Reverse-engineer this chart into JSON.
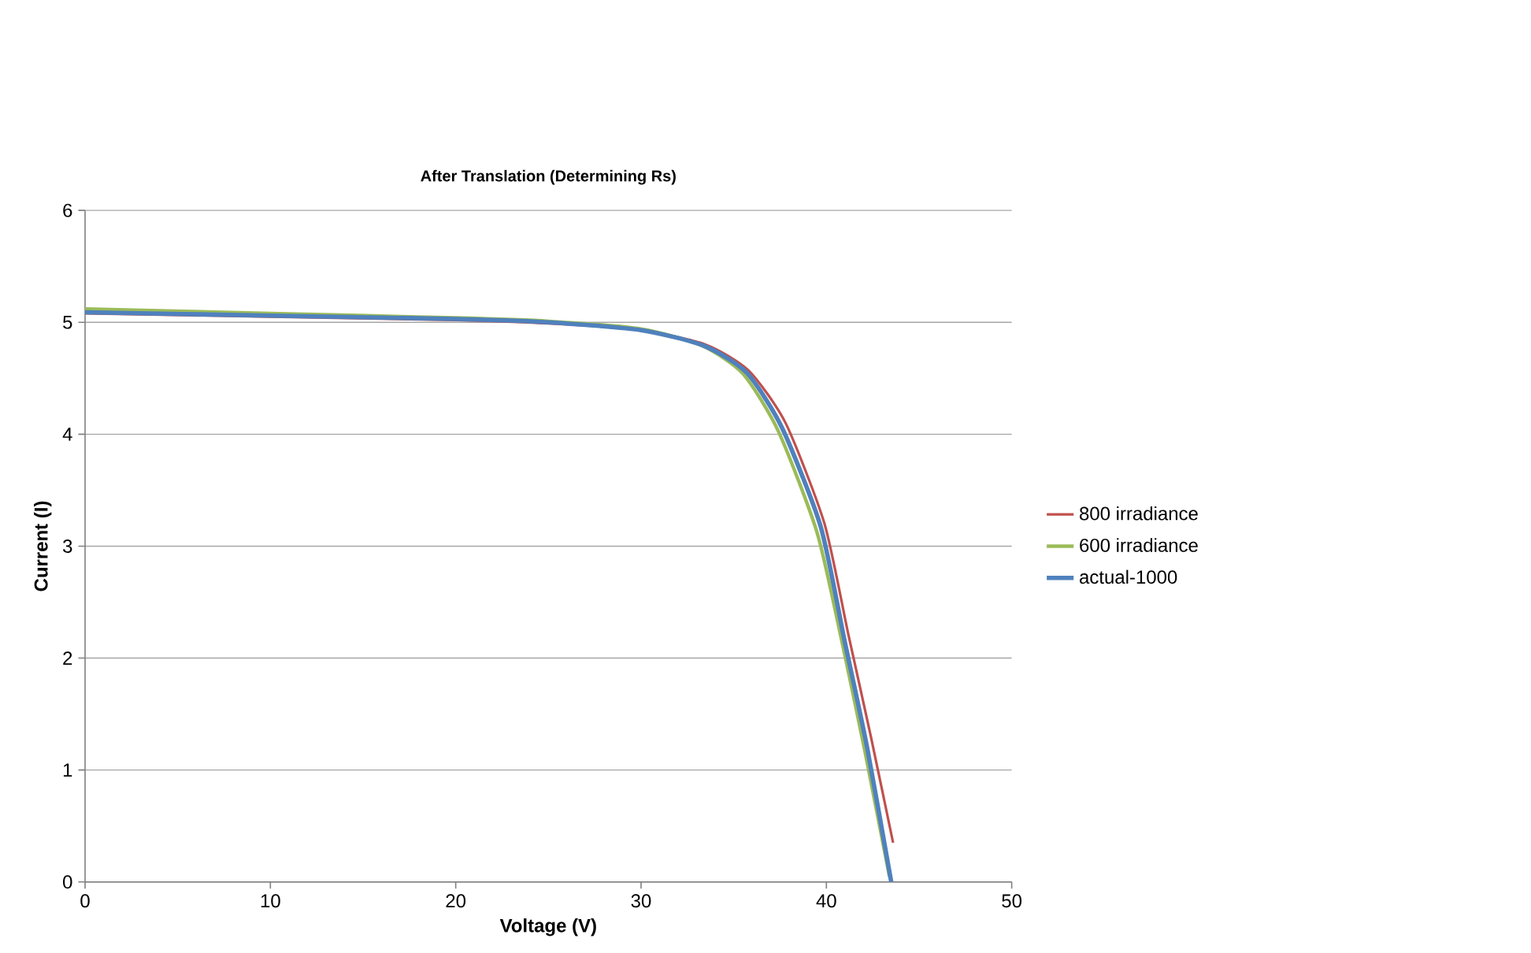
{
  "chart_data": {
    "type": "line",
    "title": "After Translation (Determining Rs)",
    "xlabel": "Voltage (V)",
    "ylabel": "Current (I)",
    "xlim": [
      0,
      50
    ],
    "ylim": [
      0,
      6
    ],
    "xticks": [
      0,
      10,
      20,
      30,
      40,
      50
    ],
    "yticks": [
      0,
      1,
      2,
      3,
      4,
      5,
      6
    ],
    "grid": "y",
    "legend": "right",
    "marker": "none",
    "series": [
      {
        "name": "800 irradiance",
        "color": "#c0504d",
        "x": [
          0,
          10,
          20,
          25,
          30,
          33.5,
          35.8,
          37.8,
          39.9,
          41.2,
          42.4,
          43.6
        ],
        "values": [
          5.08,
          5.05,
          5.02,
          4.99,
          4.93,
          4.8,
          4.57,
          4.1,
          3.2,
          2.2,
          1.3,
          0.35
        ]
      },
      {
        "name": "600 irradiance",
        "color": "#9bbb59",
        "x": [
          0,
          10,
          20,
          25,
          30,
          33.3,
          35.5,
          37.4,
          39.5,
          40.9,
          42.1,
          43.4
        ],
        "values": [
          5.12,
          5.08,
          5.04,
          5.01,
          4.94,
          4.79,
          4.54,
          4.03,
          3.12,
          2.1,
          1.15,
          0.05
        ]
      },
      {
        "name": "actual-1000",
        "color": "#4f81bd",
        "x": [
          0,
          10,
          20,
          25,
          30,
          33.4,
          35.7,
          37.6,
          39.7,
          41.0,
          42.2,
          43.5
        ],
        "values": [
          5.09,
          5.06,
          5.03,
          5.0,
          4.93,
          4.79,
          4.55,
          4.06,
          3.17,
          2.14,
          1.2,
          0
        ]
      }
    ]
  }
}
